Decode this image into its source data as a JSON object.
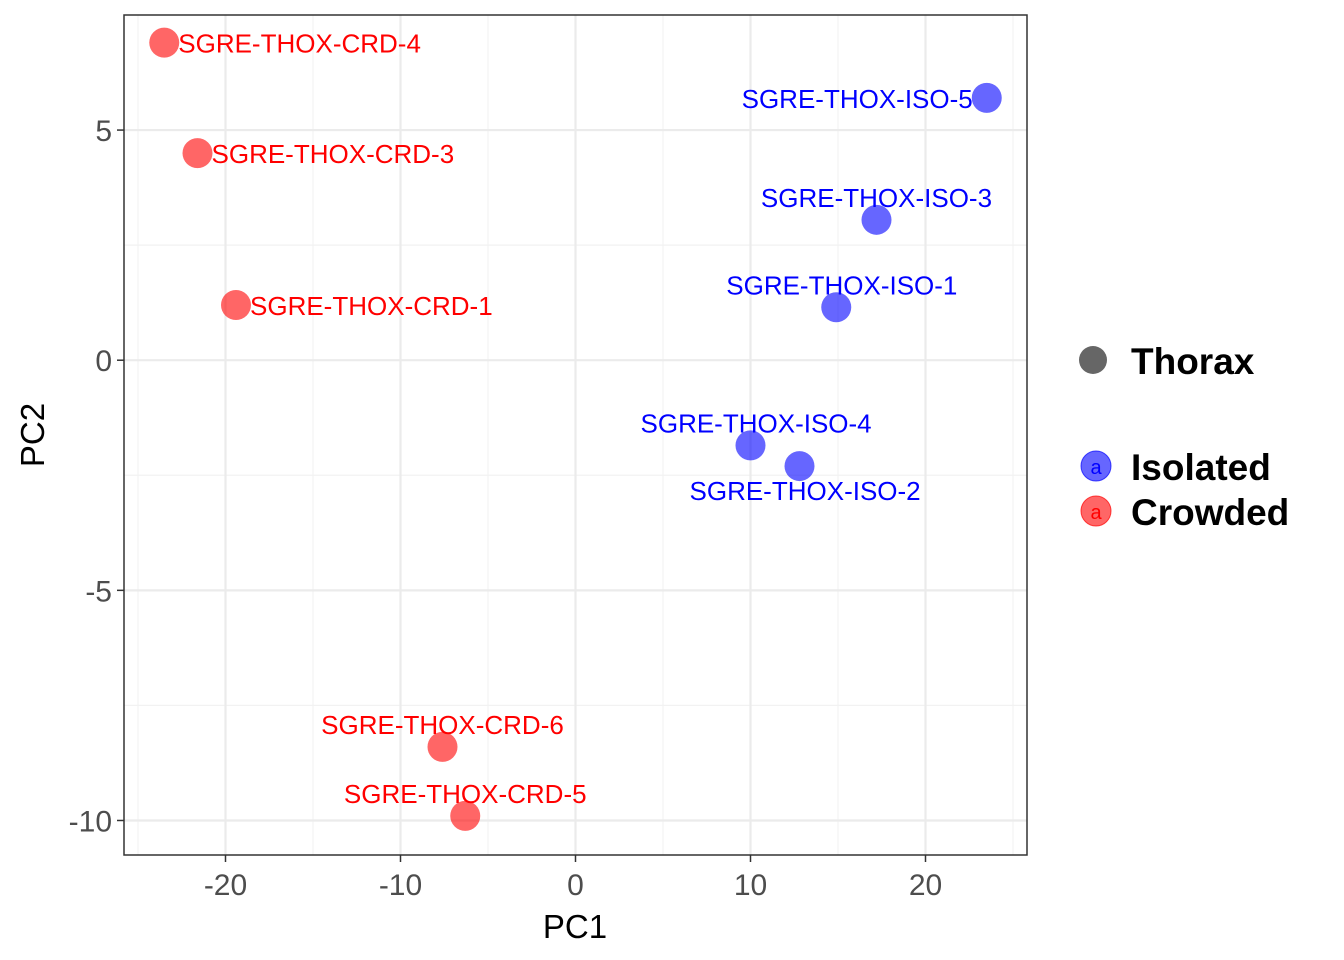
{
  "chart_data": {
    "type": "scatter",
    "xlabel": "PC1",
    "ylabel": "PC2",
    "xlim": [
      -25.8,
      25.8
    ],
    "ylim": [
      -10.75,
      7.5
    ],
    "x_ticks": [
      -20,
      -10,
      0,
      10,
      20
    ],
    "y_ticks": [
      -10,
      -5,
      0,
      5
    ],
    "x_tick_labels": [
      "-20",
      "-10",
      "0",
      "10",
      "20"
    ],
    "y_tick_labels": [
      "-10",
      "-5",
      "0",
      "5"
    ],
    "grid": true,
    "legend": {
      "position": "right",
      "shape_title": "Thorax",
      "group_entries": [
        {
          "label": "Isolated",
          "color": "#0000FF",
          "glyph": "a"
        },
        {
          "label": "Crowded",
          "color": "#FF0000",
          "glyph": "a"
        }
      ]
    },
    "colors": {
      "Isolated": "#0000FF",
      "Crowded": "#FF0000",
      "shape_key": "#666666"
    },
    "points": [
      {
        "label": "SGRE-THOX-CRD-4",
        "group": "Crowded",
        "x": -23.5,
        "y": 6.9,
        "anchor": "right"
      },
      {
        "label": "SGRE-THOX-CRD-3",
        "group": "Crowded",
        "x": -21.6,
        "y": 4.5,
        "anchor": "right"
      },
      {
        "label": "SGRE-THOX-CRD-1",
        "group": "Crowded",
        "x": -19.4,
        "y": 1.2,
        "anchor": "right"
      },
      {
        "label": "SGRE-THOX-CRD-6",
        "group": "Crowded",
        "x": -7.6,
        "y": -8.4,
        "anchor": "above"
      },
      {
        "label": "SGRE-THOX-CRD-5",
        "group": "Crowded",
        "x": -6.3,
        "y": -9.9,
        "anchor": "above"
      },
      {
        "label": "SGRE-THOX-ISO-5",
        "group": "Isolated",
        "x": 23.5,
        "y": 5.7,
        "anchor": "left"
      },
      {
        "label": "SGRE-THOX-ISO-3",
        "group": "Isolated",
        "x": 17.2,
        "y": 3.05,
        "anchor": "above"
      },
      {
        "label": "SGRE-THOX-ISO-1",
        "group": "Isolated",
        "x": 14.9,
        "y": 1.15,
        "anchor": "above-left"
      },
      {
        "label": "SGRE-THOX-ISO-4",
        "group": "Isolated",
        "x": 10.0,
        "y": -1.85,
        "anchor": "above-left"
      },
      {
        "label": "SGRE-THOX-ISO-2",
        "group": "Isolated",
        "x": 12.8,
        "y": -2.3,
        "anchor": "below"
      }
    ]
  }
}
